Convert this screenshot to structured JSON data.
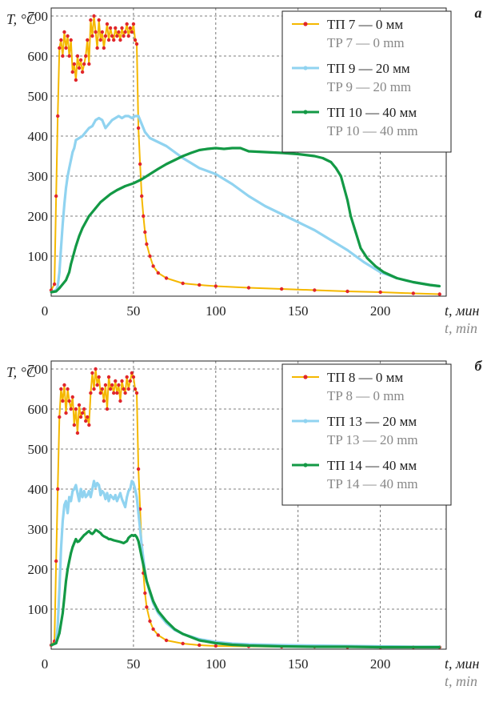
{
  "chart_data": [
    {
      "type": "line",
      "panel_label": "а",
      "ylabel": "T, °C",
      "xlabel_ru": "t, мин",
      "xlabel_en": "t, min",
      "xlim": [
        0,
        240
      ],
      "ylim": [
        0,
        720
      ],
      "x_ticks": [
        0,
        50,
        100,
        150,
        200
      ],
      "y_ticks": [
        100,
        200,
        300,
        400,
        500,
        600,
        700
      ],
      "grid": "dashed",
      "legend_position": "top-right",
      "series": [
        {
          "name_ru": "ТП 7 — 0 мм",
          "name_en": "TP 7 — 0 mm",
          "color": "#f5b800",
          "marker_color": "#e0262b",
          "x": [
            0,
            2,
            3,
            4,
            5,
            6,
            7,
            8,
            9,
            10,
            11,
            12,
            13,
            14,
            15,
            16,
            17,
            18,
            19,
            20,
            21,
            22,
            23,
            24,
            25,
            26,
            27,
            28,
            29,
            30,
            31,
            32,
            33,
            34,
            35,
            36,
            37,
            38,
            39,
            40,
            41,
            42,
            43,
            44,
            45,
            46,
            47,
            48,
            49,
            50,
            51,
            52,
            53,
            54,
            55,
            56,
            57,
            58,
            60,
            62,
            65,
            70,
            80,
            90,
            100,
            120,
            140,
            160,
            180,
            200,
            220,
            236
          ],
          "y": [
            15,
            30,
            250,
            450,
            620,
            640,
            600,
            660,
            620,
            650,
            600,
            640,
            560,
            580,
            540,
            600,
            570,
            590,
            560,
            580,
            600,
            640,
            580,
            690,
            650,
            700,
            660,
            620,
            690,
            640,
            660,
            620,
            650,
            680,
            640,
            670,
            650,
            640,
            670,
            650,
            660,
            640,
            670,
            650,
            660,
            680,
            650,
            670,
            660,
            680,
            640,
            630,
            420,
            330,
            250,
            200,
            160,
            130,
            100,
            75,
            58,
            45,
            32,
            28,
            25,
            21,
            18,
            15,
            12,
            10,
            7,
            5
          ]
        },
        {
          "name_ru": "ТП 9 — 20 мм",
          "name_en": "TP 9 — 20 mm",
          "color": "#90d3f0",
          "x": [
            0,
            3,
            4,
            5,
            6,
            7,
            8,
            9,
            10,
            11,
            12,
            13,
            14,
            15,
            17,
            19,
            21,
            23,
            25,
            27,
            29,
            31,
            33,
            35,
            37,
            39,
            41,
            43,
            45,
            47,
            49,
            51,
            53,
            55,
            57,
            60,
            65,
            70,
            75,
            80,
            90,
            100,
            110,
            120,
            130,
            140,
            150,
            160,
            170,
            180,
            190,
            200,
            210,
            220,
            230,
            236
          ],
          "y": [
            10,
            15,
            25,
            60,
            120,
            180,
            230,
            270,
            300,
            320,
            340,
            360,
            370,
            390,
            395,
            400,
            410,
            420,
            425,
            440,
            445,
            440,
            420,
            430,
            440,
            445,
            450,
            445,
            450,
            450,
            445,
            450,
            450,
            430,
            410,
            395,
            385,
            375,
            360,
            345,
            320,
            305,
            280,
            250,
            225,
            205,
            185,
            165,
            140,
            115,
            85,
            60,
            45,
            35,
            28,
            25
          ]
        },
        {
          "name_ru": "ТП 10 — 40 мм",
          "name_en": "TP 10 — 40 mm",
          "color": "#139945",
          "x": [
            0,
            3,
            5,
            7,
            9,
            11,
            12,
            13,
            14,
            15,
            17,
            19,
            21,
            23,
            25,
            27,
            30,
            33,
            36,
            40,
            45,
            50,
            55,
            60,
            65,
            70,
            75,
            80,
            85,
            90,
            95,
            100,
            105,
            110,
            115,
            120,
            130,
            140,
            150,
            160,
            165,
            170,
            173,
            176,
            178,
            180,
            182,
            185,
            188,
            192,
            197,
            202,
            210,
            220,
            230,
            236
          ],
          "y": [
            10,
            12,
            20,
            30,
            40,
            60,
            80,
            95,
            110,
            125,
            150,
            170,
            185,
            200,
            210,
            220,
            235,
            245,
            255,
            265,
            275,
            282,
            292,
            305,
            318,
            330,
            340,
            350,
            358,
            365,
            368,
            370,
            368,
            370,
            370,
            362,
            360,
            358,
            355,
            350,
            345,
            335,
            320,
            300,
            270,
            240,
            200,
            160,
            120,
            95,
            75,
            60,
            45,
            35,
            28,
            25
          ]
        }
      ]
    },
    {
      "type": "line",
      "panel_label": "б",
      "ylabel": "T, °C",
      "xlabel_ru": "t, мин",
      "xlabel_en": "t, min",
      "xlim": [
        0,
        240
      ],
      "ylim": [
        0,
        720
      ],
      "x_ticks": [
        0,
        50,
        100,
        150,
        200
      ],
      "y_ticks": [
        100,
        200,
        300,
        400,
        500,
        600,
        700
      ],
      "grid": "dashed",
      "legend_position": "top-right",
      "series": [
        {
          "name_ru": "ТП 8 — 0 мм",
          "name_en": "TP 8 — 0 mm",
          "color": "#f5b800",
          "marker_color": "#e0262b",
          "x": [
            0,
            2,
            3,
            4,
            5,
            6,
            7,
            8,
            9,
            10,
            11,
            12,
            13,
            14,
            15,
            16,
            17,
            18,
            19,
            20,
            21,
            22,
            23,
            24,
            25,
            26,
            27,
            28,
            29,
            30,
            31,
            32,
            33,
            34,
            35,
            36,
            37,
            38,
            39,
            40,
            41,
            42,
            43,
            44,
            45,
            46,
            47,
            48,
            49,
            50,
            51,
            52,
            53,
            54,
            55,
            56,
            57,
            58,
            60,
            62,
            65,
            70,
            80,
            90,
            100,
            120,
            140,
            160,
            180,
            200,
            220,
            236
          ],
          "y": [
            10,
            20,
            220,
            400,
            580,
            650,
            620,
            660,
            590,
            650,
            620,
            600,
            630,
            560,
            600,
            540,
            610,
            580,
            590,
            600,
            570,
            580,
            560,
            640,
            690,
            650,
            700,
            660,
            680,
            640,
            650,
            620,
            660,
            600,
            680,
            650,
            660,
            640,
            670,
            640,
            660,
            620,
            670,
            650,
            640,
            680,
            650,
            670,
            690,
            680,
            650,
            640,
            450,
            350,
            260,
            190,
            140,
            105,
            70,
            50,
            35,
            22,
            14,
            10,
            8,
            7,
            6,
            6,
            5,
            5,
            5,
            5
          ]
        },
        {
          "name_ru": "ТП 13 — 20 мм",
          "name_en": "TP 13 — 20 mm",
          "color": "#90d3f0",
          "x": [
            0,
            3,
            4,
            5,
            6,
            7,
            8,
            9,
            10,
            11,
            12,
            13,
            14,
            15,
            16,
            17,
            18,
            19,
            20,
            21,
            22,
            23,
            24,
            25,
            26,
            27,
            28,
            29,
            30,
            31,
            32,
            33,
            34,
            35,
            36,
            37,
            38,
            39,
            40,
            41,
            42,
            43,
            44,
            45,
            46,
            47,
            48,
            49,
            50,
            51,
            52,
            53,
            54,
            55,
            56,
            57,
            58,
            60,
            62,
            65,
            70,
            75,
            80,
            90,
            100,
            110,
            120,
            140,
            160,
            180,
            200,
            220,
            236
          ],
          "y": [
            10,
            15,
            60,
            150,
            250,
            320,
            360,
            370,
            340,
            380,
            370,
            395,
            400,
            410,
            390,
            370,
            400,
            380,
            395,
            380,
            385,
            395,
            380,
            400,
            420,
            405,
            415,
            410,
            385,
            395,
            390,
            375,
            390,
            370,
            385,
            380,
            375,
            385,
            370,
            380,
            390,
            375,
            365,
            355,
            380,
            395,
            400,
            420,
            415,
            400,
            380,
            340,
            300,
            260,
            225,
            195,
            170,
            140,
            115,
            90,
            65,
            48,
            38,
            25,
            18,
            14,
            12,
            10,
            9,
            8,
            7,
            6,
            6
          ]
        },
        {
          "name_ru": "ТП 14 — 40 мм",
          "name_en": "TP 14 — 40 mm",
          "color": "#139945",
          "x": [
            0,
            3,
            5,
            7,
            8,
            9,
            10,
            11,
            12,
            13,
            14,
            15,
            16,
            17,
            18,
            19,
            20,
            21,
            22,
            23,
            24,
            25,
            26,
            27,
            28,
            29,
            30,
            31,
            32,
            33,
            34,
            35,
            36,
            38,
            40,
            42,
            44,
            46,
            47,
            48,
            49,
            50,
            51,
            52,
            53,
            54,
            55,
            56,
            57,
            58,
            60,
            62,
            65,
            70,
            75,
            80,
            90,
            100,
            110,
            120,
            140,
            160,
            180,
            200,
            220,
            236
          ],
          "y": [
            10,
            15,
            40,
            90,
            130,
            170,
            200,
            220,
            240,
            255,
            265,
            275,
            268,
            270,
            275,
            280,
            285,
            288,
            292,
            295,
            290,
            288,
            292,
            298,
            296,
            293,
            290,
            285,
            282,
            280,
            278,
            275,
            275,
            272,
            270,
            268,
            265,
            270,
            278,
            282,
            285,
            283,
            285,
            280,
            270,
            250,
            230,
            210,
            190,
            170,
            145,
            120,
            95,
            70,
            50,
            38,
            22,
            15,
            11,
            9,
            7,
            6,
            6,
            5,
            5,
            5
          ]
        }
      ]
    }
  ]
}
